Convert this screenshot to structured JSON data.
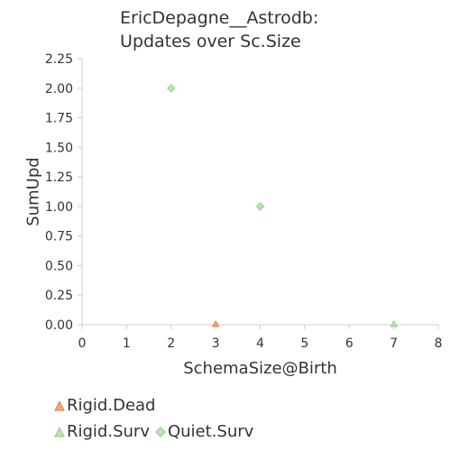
{
  "chart_data": {
    "type": "scatter",
    "title_lines": [
      "EricDepagne__Astrodb:",
      "Updates over Sc.Size"
    ],
    "xlabel": "SchemaSize@Birth",
    "ylabel": "SumUpd",
    "xlim": [
      0,
      8
    ],
    "ylim": [
      0,
      2.25
    ],
    "xticks": [
      "0",
      "1",
      "2",
      "3",
      "4",
      "5",
      "6",
      "7",
      "8"
    ],
    "yticks": [
      "0.00",
      "0.25",
      "0.50",
      "0.75",
      "1.00",
      "1.25",
      "1.50",
      "1.75",
      "2.00",
      "2.25"
    ],
    "grid": false,
    "legend_position": "bottom-left",
    "series": [
      {
        "name": "Rigid.Dead",
        "marker": "triangle",
        "color": "#f4a582",
        "stroke": "#e08050",
        "points": [
          {
            "x": 3,
            "y": 0
          }
        ]
      },
      {
        "name": "Rigid.Surv",
        "marker": "triangle",
        "color": "#b8e6b0",
        "stroke": "#8ccf80",
        "points": [
          {
            "x": 7,
            "y": 0
          }
        ]
      },
      {
        "name": "Quiet.Surv",
        "marker": "diamond",
        "color": "#b8e6b0",
        "stroke": "#8ccf80",
        "points": [
          {
            "x": 2,
            "y": 2
          },
          {
            "x": 4,
            "y": 1
          }
        ]
      }
    ]
  }
}
